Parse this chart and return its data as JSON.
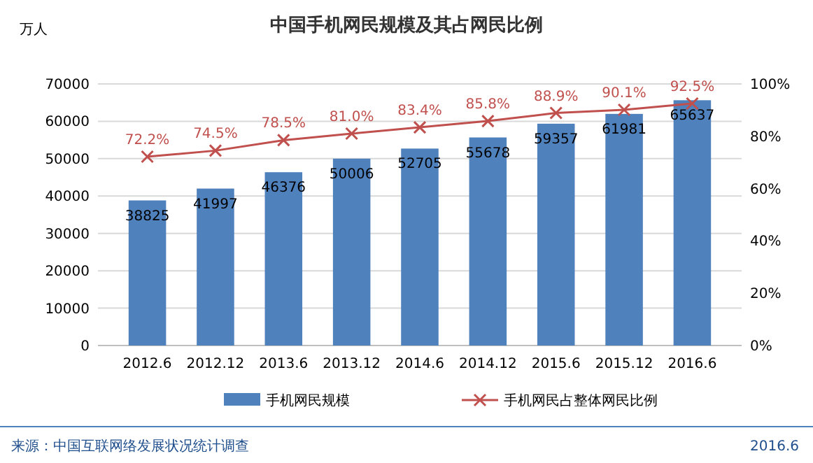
{
  "chart_data": {
    "type": "bar",
    "title": "中国手机网民规模及其占网民比例",
    "ylabel": "万人",
    "categories": [
      "2012.6",
      "2012.12",
      "2013.6",
      "2013.12",
      "2014.6",
      "2014.12",
      "2015.6",
      "2015.12",
      "2016.6"
    ],
    "series": [
      {
        "name": "手机网民规模",
        "color": "#4f81bd",
        "values": [
          38825,
          41997,
          46376,
          50006,
          52705,
          55678,
          59357,
          61981,
          65637
        ],
        "value_labels": [
          "38825",
          "41997",
          "46376",
          "50006",
          "52705",
          "55678",
          "59357",
          "61981",
          "65637"
        ]
      },
      {
        "name": "手机网民占整体网民比例",
        "type": "line",
        "axis": "y2",
        "color": "#c0504d",
        "marker": "cross",
        "values": [
          72.2,
          74.5,
          78.5,
          81.0,
          83.4,
          85.8,
          88.9,
          90.1,
          92.5
        ],
        "value_labels": [
          "72.2%",
          "74.5%",
          "78.5%",
          "81.0%",
          "83.4%",
          "85.8%",
          "88.9%",
          "90.1%",
          "92.5%"
        ]
      }
    ],
    "ylim": [
      0,
      70000
    ],
    "yticks": [
      0,
      10000,
      20000,
      30000,
      40000,
      50000,
      60000,
      70000
    ],
    "y2lim": [
      0,
      100
    ],
    "y2ticks": [
      {
        "value": 0,
        "label": "0%"
      },
      {
        "value": 20,
        "label": "20%"
      },
      {
        "value": 40,
        "label": "40%"
      },
      {
        "value": 60,
        "label": "60%"
      },
      {
        "value": 80,
        "label": "80%"
      },
      {
        "value": 100,
        "label": "100%"
      }
    ],
    "grid": "y",
    "legend": "bottom",
    "annotations": [
      "来源：中国互联网络发展状况统计调查",
      "2016.6"
    ]
  }
}
